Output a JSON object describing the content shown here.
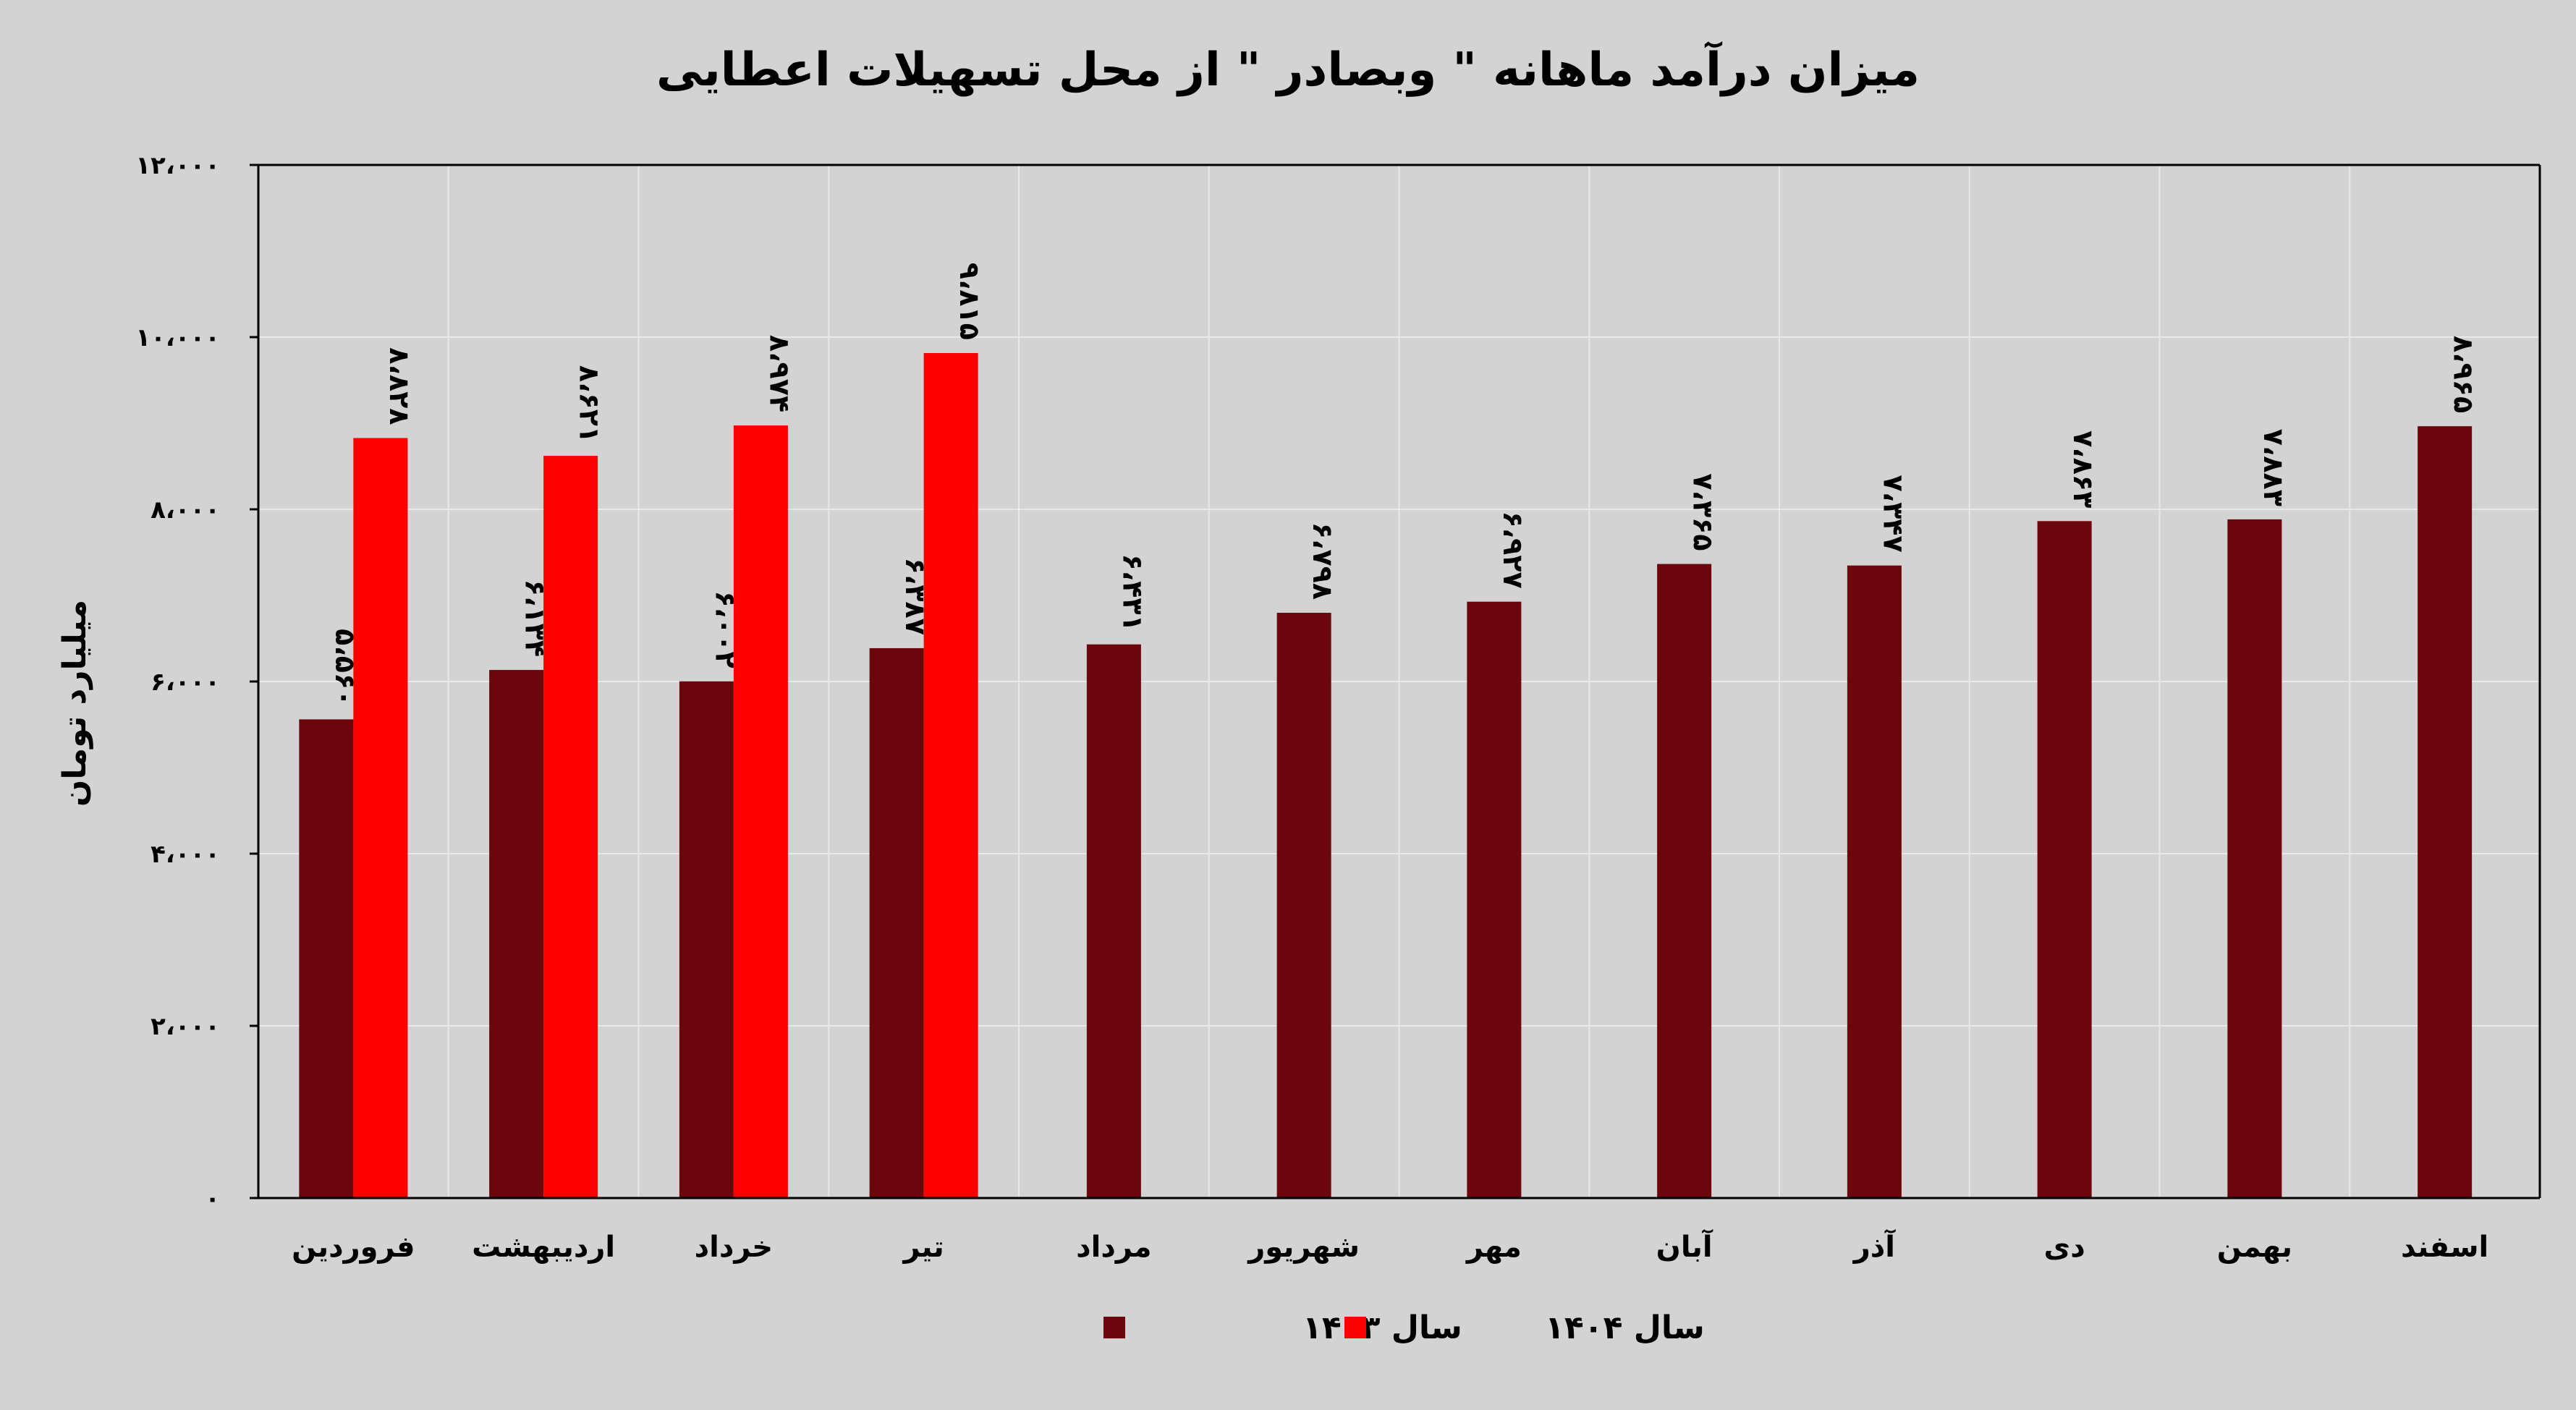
{
  "chart_data": {
    "type": "bar",
    "title": "میزان درآمد ماهانه \" وبصادر \" از محل تسهیلات اعطایی",
    "ylabel": "میلیارد تومان",
    "xlabel": "",
    "ylim": [
      0,
      12000
    ],
    "yticks": [
      0,
      2000,
      4000,
      6000,
      8000,
      10000,
      12000
    ],
    "ytick_labels": [
      "۰",
      "۲،۰۰۰",
      "۴،۰۰۰",
      "۶،۰۰۰",
      "۸،۰۰۰",
      "۱۰،۰۰۰",
      "۱۲،۰۰۰"
    ],
    "categories": [
      "فروردین",
      "اردیبهشت",
      "خرداد",
      "تیر",
      "مرداد",
      "شهریور",
      "مهر",
      "آبان",
      "آذر",
      "دی",
      "بهمن",
      "اسفند"
    ],
    "series": [
      {
        "name": "سال ۱۴۰۳",
        "color": "#6b060c",
        "values": [
          5560,
          6134,
          6002,
          6387,
          6431,
          6798,
          6927,
          7365,
          7347,
          7863,
          7883,
          8965
        ],
        "labels": [
          "۵،۵۶۰",
          "۶،۱۳۴",
          "۶،۰۰۲",
          "۶،۳۸۷",
          "۶،۴۳۱",
          "۶،۷۹۸",
          "۶،۹۲۷",
          "۷،۳۶۵",
          "۷،۳۴۷",
          "۷،۸۶۳",
          "۷،۸۸۳",
          "۸،۹۶۵"
        ]
      },
      {
        "name": "سال ۱۴۰۴",
        "color": "#ff0000",
        "values": [
          8828,
          8621,
          8974,
          9815,
          null,
          null,
          null,
          null,
          null,
          null,
          null,
          null
        ],
        "labels": [
          "۸،۸۲۸",
          "۸،۶۲۱",
          "۸،۹۷۴",
          "۹،۸۱۵",
          "",
          "",
          "",
          "",
          "",
          "",
          "",
          ""
        ]
      }
    ],
    "grid": true,
    "legend": "bottom"
  }
}
